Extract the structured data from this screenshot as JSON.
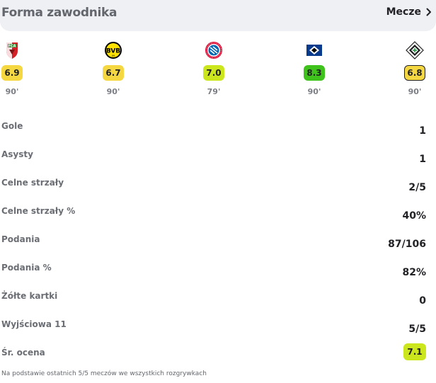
{
  "header": {
    "title": "Forma zawodnika",
    "matches_link": "Mecze"
  },
  "matches": [
    {
      "team_icon": "augsburg-crest",
      "rating": "6.9",
      "rating_color": "#f5d742",
      "minutes": "90'"
    },
    {
      "team_icon": "dortmund-crest",
      "rating": "6.7",
      "rating_color": "#f5d742",
      "minutes": "90'"
    },
    {
      "team_icon": "bayern-crest",
      "rating": "7.0",
      "rating_color": "#cce61e",
      "minutes": "79'"
    },
    {
      "team_icon": "hamburg-crest",
      "rating": "8.3",
      "rating_color": "#3fc21b",
      "minutes": "90'"
    },
    {
      "team_icon": "gladbach-crest",
      "rating": "6.8",
      "rating_color": "#f5d742",
      "minutes": "90'"
    }
  ],
  "stats": [
    {
      "label": "Gole",
      "value": "1"
    },
    {
      "label": "Asysty",
      "value": "1"
    },
    {
      "label": "Celne strzały",
      "value": "2/5"
    },
    {
      "label": "Celne strzały %",
      "value": "40%"
    },
    {
      "label": "Podania",
      "value": "87/106"
    },
    {
      "label": "Podania %",
      "value": "82%"
    },
    {
      "label": "Żółte kartki",
      "value": "0"
    },
    {
      "label": "Wyjściowa 11",
      "value": "5/5"
    },
    {
      "label": "Śr. ocena",
      "value": "7.1",
      "badge_color": "#cce61e"
    }
  ],
  "footnote": "Na podstawie ostatnich 5/5 meczów we wszystkich rozgrywkach",
  "colors": {
    "header_bg": "#eef0f4",
    "selected_outline": "#222226"
  }
}
